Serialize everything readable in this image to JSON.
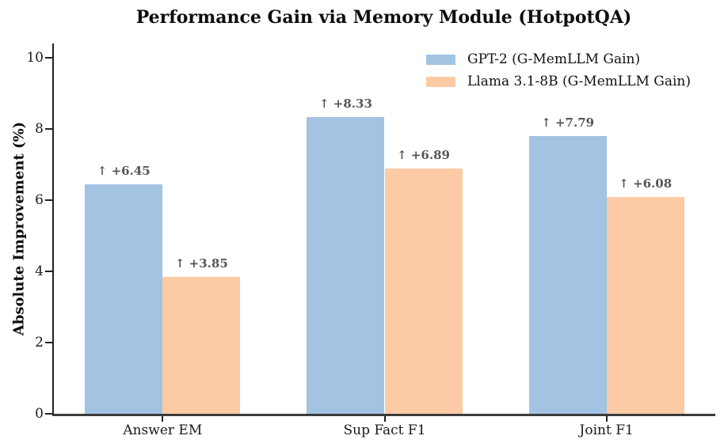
{
  "chart_data": {
    "type": "bar",
    "title": "Performance Gain via Memory Module (HotpotQA)",
    "xlabel": "",
    "ylabel": "Absolute Improvement (%)",
    "categories": [
      "Answer EM",
      "Sup Fact F1",
      "Joint F1"
    ],
    "series": [
      {
        "name": "GPT-2 (G-MemLLM Gain)",
        "color": "#a3c3e3",
        "values": [
          6.45,
          8.33,
          7.79
        ]
      },
      {
        "name": "Llama 3.1-8B (G-MemLLM Gain)",
        "color": "#fccaa4",
        "values": [
          3.85,
          6.89,
          6.08
        ]
      }
    ],
    "bar_labels": [
      [
        "↑ +6.45",
        "↑ +8.33",
        "↑ +7.79"
      ],
      [
        "↑ +3.85",
        "↑ +6.89",
        "↑ +6.08"
      ]
    ],
    "yticks": [
      0,
      2,
      4,
      6,
      8,
      10
    ],
    "ylim": [
      0,
      10.4
    ],
    "grid": false,
    "legend_position": "upper right",
    "value_label_color": "#555555",
    "axis_color": "#222222"
  }
}
